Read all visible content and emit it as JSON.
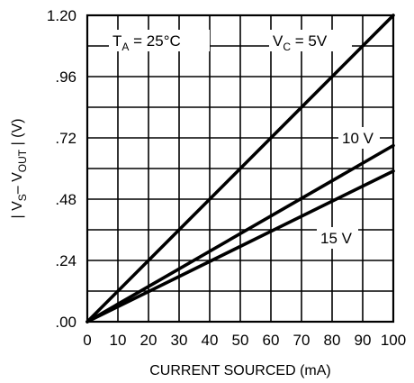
{
  "chart_data": {
    "type": "line",
    "xlabel": "CURRENT SOURCED (mA)",
    "ylabel_parts": [
      "| V",
      "S",
      "– V",
      "OUT",
      " | (V)"
    ],
    "xlim": [
      0,
      100
    ],
    "ylim": [
      0,
      1.2
    ],
    "x_ticks": [
      0,
      10,
      20,
      30,
      40,
      50,
      60,
      70,
      80,
      90,
      100
    ],
    "x_tick_labels": [
      "0",
      "10",
      "20",
      "30",
      "40",
      "50",
      "60",
      "70",
      "80",
      "90",
      "100"
    ],
    "y_ticks": [
      0,
      0.24,
      0.48,
      0.72,
      0.96,
      1.2
    ],
    "y_tick_labels": [
      ".00",
      ".24",
      ".48",
      ".72",
      ".96",
      "1.20"
    ],
    "y_minor_grid_step": 0.12,
    "grid": true,
    "condition_parts": [
      "T",
      "A",
      " = 25°C"
    ],
    "series": [
      {
        "label_parts": [
          "V",
          "C",
          " = 5V"
        ],
        "x": [
          0,
          100
        ],
        "y": [
          0,
          1.2
        ]
      },
      {
        "label_parts": [
          "10 V"
        ],
        "x": [
          0,
          100
        ],
        "y": [
          0,
          0.69
        ]
      },
      {
        "label_parts": [
          "15 V"
        ],
        "x": [
          0,
          100
        ],
        "y": [
          0,
          0.59
        ]
      }
    ]
  }
}
